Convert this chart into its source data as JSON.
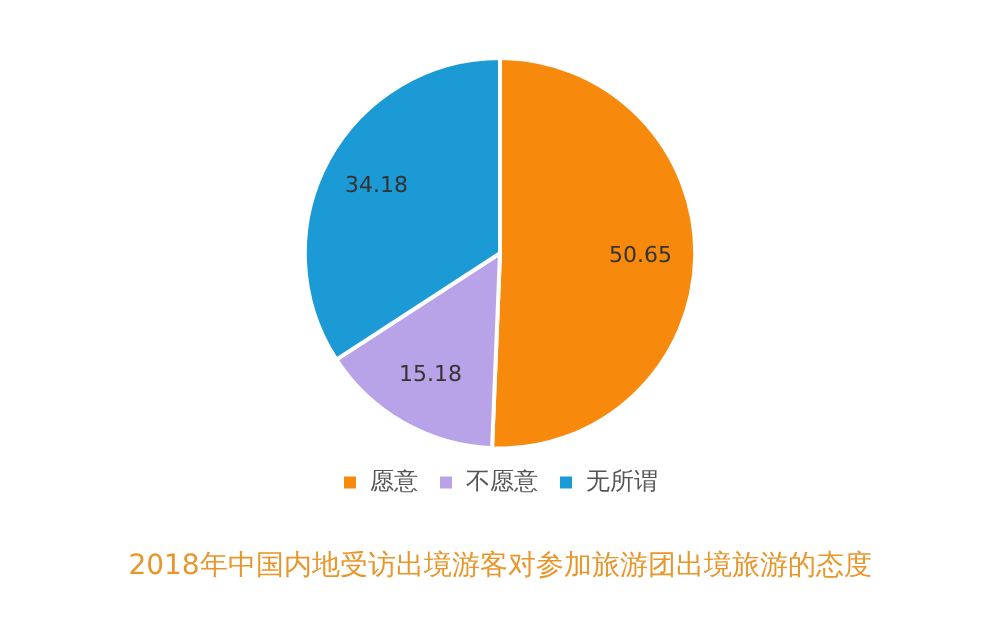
{
  "chart_data": {
    "type": "pie",
    "title": "2018年中国内地受访出境游客对参加旅游团出境旅游的态度",
    "categories": [
      "愿意",
      "不愿意",
      "无所谓"
    ],
    "values": [
      50.65,
      15.18,
      34.18
    ],
    "colors": [
      "#f7890c",
      "#b9a3e8",
      "#1c9ad6"
    ],
    "data_labels": true,
    "legend": "bottom"
  }
}
